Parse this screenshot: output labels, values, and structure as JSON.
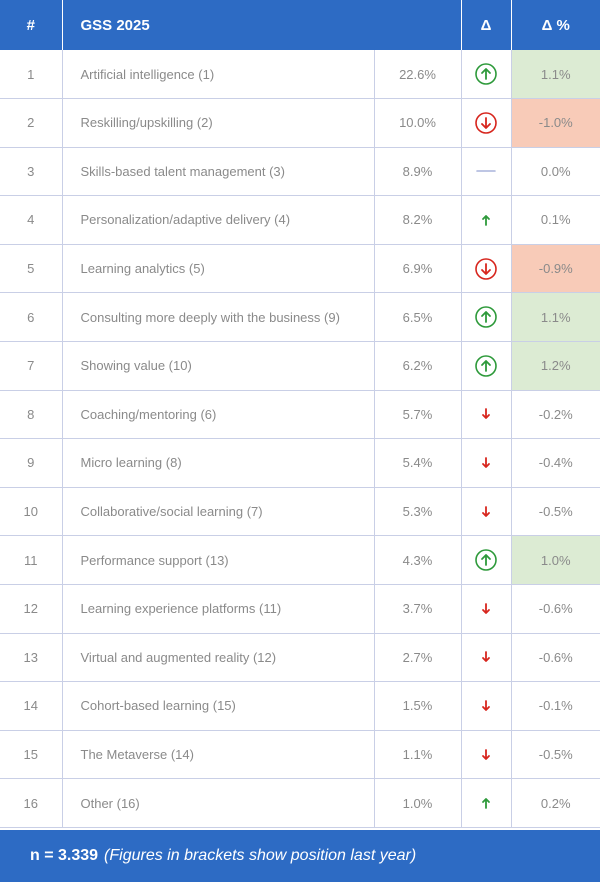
{
  "chart_data": {
    "type": "table",
    "columns": {
      "rank": "#",
      "topic": "GSS 2025",
      "direction": "Δ",
      "change": "Δ %"
    },
    "rows": [
      {
        "rank": "1",
        "topic": "Artificial intelligence (1)",
        "value": "22.6%",
        "direction": "up-strong",
        "change": "1.1%"
      },
      {
        "rank": "2",
        "topic": "Reskilling/upskilling (2)",
        "value": "10.0%",
        "direction": "down-strong",
        "change": "-1.0%"
      },
      {
        "rank": "3",
        "topic": "Skills-based talent management (3)",
        "value": "8.9%",
        "direction": "flat",
        "change": "0.0%"
      },
      {
        "rank": "4",
        "topic": "Personalization/adaptive delivery (4)",
        "value": "8.2%",
        "direction": "up",
        "change": "0.1%"
      },
      {
        "rank": "5",
        "topic": "Learning analytics (5)",
        "value": "6.9%",
        "direction": "down-strong",
        "change": "-0.9%"
      },
      {
        "rank": "6",
        "topic": "Consulting more deeply with the business (9)",
        "value": "6.5%",
        "direction": "up-strong",
        "change": "1.1%"
      },
      {
        "rank": "7",
        "topic": "Showing value (10)",
        "value": "6.2%",
        "direction": "up-strong",
        "change": "1.2%"
      },
      {
        "rank": "8",
        "topic": "Coaching/mentoring (6)",
        "value": "5.7%",
        "direction": "down",
        "change": "-0.2%"
      },
      {
        "rank": "9",
        "topic": "Micro learning (8)",
        "value": "5.4%",
        "direction": "down",
        "change": "-0.4%"
      },
      {
        "rank": "10",
        "topic": "Collaborative/social learning (7)",
        "value": "5.3%",
        "direction": "down",
        "change": "-0.5%"
      },
      {
        "rank": "11",
        "topic": "Performance support (13)",
        "value": "4.3%",
        "direction": "up-strong",
        "change": "1.0%"
      },
      {
        "rank": "12",
        "topic": "Learning experience platforms (11)",
        "value": "3.7%",
        "direction": "down",
        "change": "-0.6%"
      },
      {
        "rank": "13",
        "topic": "Virtual and augmented reality (12)",
        "value": "2.7%",
        "direction": "down",
        "change": "-0.6%"
      },
      {
        "rank": "14",
        "topic": "Cohort-based learning (15)",
        "value": "1.5%",
        "direction": "down",
        "change": "-0.1%"
      },
      {
        "rank": "15",
        "topic": "The Metaverse (14)",
        "value": "1.1%",
        "direction": "down",
        "change": "-0.5%"
      },
      {
        "rank": "16",
        "topic": "Other (16)",
        "value": "1.0%",
        "direction": "up",
        "change": "0.2%"
      }
    ]
  },
  "footer": {
    "n_label": "n = 3.339",
    "note": "(Figures in brackets show position last year)"
  },
  "colors": {
    "header_bg": "#2d6bc4",
    "up": "#2e9a3b",
    "down": "#d7261e",
    "flat": "#a9b4dc",
    "up_highlight": "#dcebd3",
    "down_highlight": "#f8cbb8"
  }
}
